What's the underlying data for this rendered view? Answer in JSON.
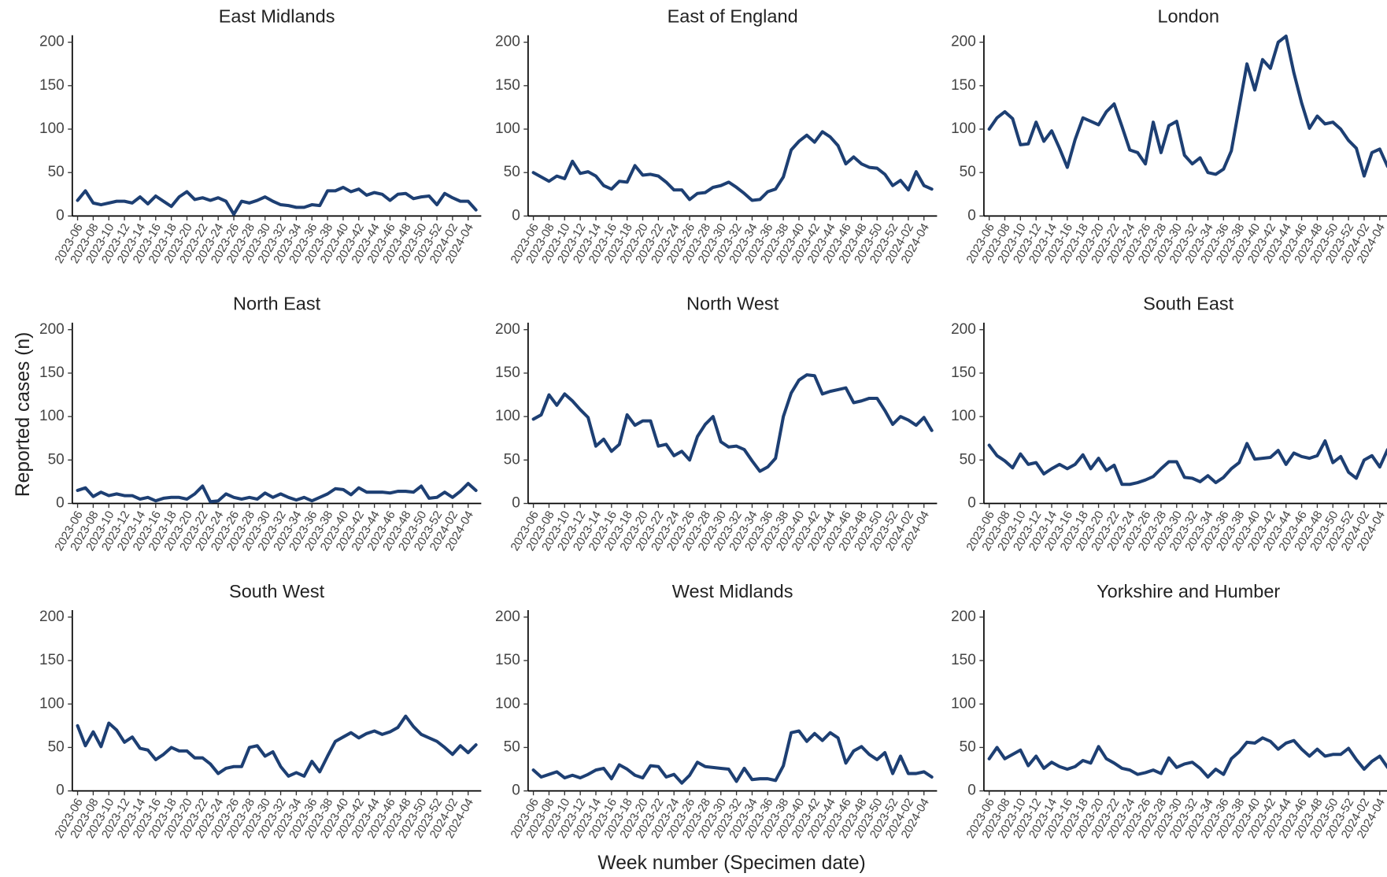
{
  "chart_data": {
    "type": "line",
    "ylabel": "Reported cases (n)",
    "xlabel": "Week number (Specimen date)",
    "color": "#1d3f73",
    "ylim": [
      0,
      208
    ],
    "yticks": [
      0,
      50,
      100,
      150,
      200
    ],
    "categories": [
      "2023-06",
      null,
      "2023-08",
      null,
      "2023-10",
      null,
      "2023-12",
      null,
      "2023-14",
      null,
      "2023-16",
      null,
      "2023-18",
      null,
      "2023-20",
      null,
      "2023-22",
      null,
      "2023-24",
      null,
      "2023-26",
      null,
      "2023-28",
      null,
      "2023-30",
      null,
      "2023-32",
      null,
      "2023-34",
      null,
      "2023-36",
      null,
      "2023-38",
      null,
      "2023-40",
      null,
      "2023-42",
      null,
      "2023-44",
      null,
      "2023-46",
      null,
      "2023-48",
      null,
      "2023-50",
      null,
      "2023-52",
      null,
      "2024-02",
      null,
      "2024-04",
      null
    ],
    "panels": [
      {
        "title": "East Midlands",
        "values": [
          18,
          29,
          15,
          13,
          15,
          17,
          17,
          15,
          22,
          14,
          23,
          17,
          11,
          22,
          28,
          19,
          21,
          18,
          21,
          17,
          2,
          17,
          15,
          18,
          22,
          17,
          13,
          12,
          10,
          10,
          13,
          12,
          29,
          29,
          33,
          28,
          31,
          24,
          27,
          25,
          18,
          25,
          26,
          20,
          22,
          23,
          13,
          26,
          21,
          17,
          17,
          7
        ]
      },
      {
        "title": "East of England",
        "values": [
          50,
          45,
          40,
          46,
          43,
          63,
          49,
          51,
          46,
          35,
          31,
          40,
          39,
          58,
          47,
          48,
          46,
          39,
          30,
          30,
          19,
          26,
          27,
          33,
          35,
          39,
          33,
          26,
          18,
          19,
          28,
          31,
          45,
          76,
          86,
          93,
          85,
          97,
          91,
          81,
          60,
          68,
          60,
          56,
          55,
          48,
          35,
          41,
          30,
          51,
          35,
          31
        ]
      },
      {
        "title": "London",
        "values": [
          100,
          113,
          120,
          112,
          82,
          83,
          108,
          86,
          98,
          78,
          56,
          88,
          113,
          109,
          105,
          120,
          129,
          103,
          76,
          73,
          60,
          108,
          73,
          104,
          109,
          70,
          60,
          67,
          50,
          48,
          54,
          75,
          125,
          175,
          145,
          180,
          170,
          200,
          207,
          165,
          130,
          101,
          115,
          106,
          108,
          100,
          87,
          78,
          46,
          73,
          77,
          57
        ]
      },
      {
        "title": "North East",
        "values": [
          15,
          18,
          8,
          13,
          9,
          11,
          9,
          9,
          5,
          7,
          3,
          6,
          7,
          7,
          5,
          11,
          20,
          2,
          3,
          11,
          7,
          5,
          7,
          5,
          12,
          7,
          11,
          7,
          4,
          7,
          3,
          7,
          11,
          17,
          16,
          10,
          18,
          13,
          13,
          13,
          12,
          14,
          14,
          13,
          20,
          6,
          7,
          13,
          7,
          14,
          23,
          15
        ]
      },
      {
        "title": "North West",
        "values": [
          97,
          102,
          125,
          113,
          126,
          118,
          108,
          99,
          66,
          74,
          60,
          68,
          102,
          90,
          95,
          95,
          66,
          68,
          55,
          60,
          50,
          77,
          91,
          100,
          71,
          65,
          66,
          62,
          49,
          37,
          42,
          52,
          100,
          127,
          142,
          148,
          147,
          126,
          129,
          131,
          133,
          116,
          118,
          121,
          121,
          107,
          91,
          100,
          96,
          90,
          99,
          84
        ]
      },
      {
        "title": "South East",
        "values": [
          67,
          55,
          49,
          41,
          57,
          45,
          47,
          34,
          40,
          45,
          40,
          45,
          56,
          40,
          52,
          38,
          44,
          22,
          22,
          24,
          27,
          31,
          40,
          48,
          48,
          30,
          29,
          25,
          32,
          24,
          30,
          40,
          47,
          69,
          51,
          52,
          53,
          61,
          45,
          58,
          54,
          52,
          55,
          72,
          47,
          54,
          36,
          29,
          50,
          55,
          42,
          62
        ]
      },
      {
        "title": "South West",
        "values": [
          75,
          52,
          68,
          51,
          78,
          70,
          56,
          62,
          49,
          47,
          36,
          42,
          50,
          46,
          46,
          38,
          38,
          31,
          20,
          26,
          28,
          28,
          50,
          52,
          40,
          45,
          28,
          17,
          21,
          17,
          34,
          22,
          40,
          57,
          62,
          67,
          61,
          66,
          69,
          65,
          68,
          73,
          86,
          74,
          65,
          61,
          57,
          50,
          42,
          52,
          44,
          53
        ]
      },
      {
        "title": "West Midlands",
        "values": [
          24,
          16,
          19,
          22,
          15,
          18,
          15,
          19,
          24,
          26,
          14,
          30,
          25,
          18,
          15,
          29,
          28,
          16,
          19,
          9,
          18,
          33,
          28,
          27,
          26,
          25,
          11,
          26,
          13,
          14,
          14,
          12,
          29,
          67,
          69,
          57,
          66,
          58,
          67,
          61,
          32,
          46,
          51,
          42,
          36,
          44,
          20,
          40,
          20,
          20,
          22,
          16
        ]
      },
      {
        "title": "Yorkshire and Humber",
        "values": [
          37,
          50,
          37,
          42,
          47,
          29,
          40,
          26,
          33,
          28,
          25,
          28,
          35,
          32,
          51,
          37,
          32,
          26,
          24,
          19,
          21,
          24,
          20,
          38,
          27,
          31,
          33,
          26,
          16,
          25,
          19,
          37,
          45,
          56,
          55,
          61,
          57,
          48,
          55,
          58,
          48,
          40,
          48,
          40,
          42,
          42,
          49,
          36,
          25,
          34,
          40,
          27
        ]
      }
    ]
  }
}
